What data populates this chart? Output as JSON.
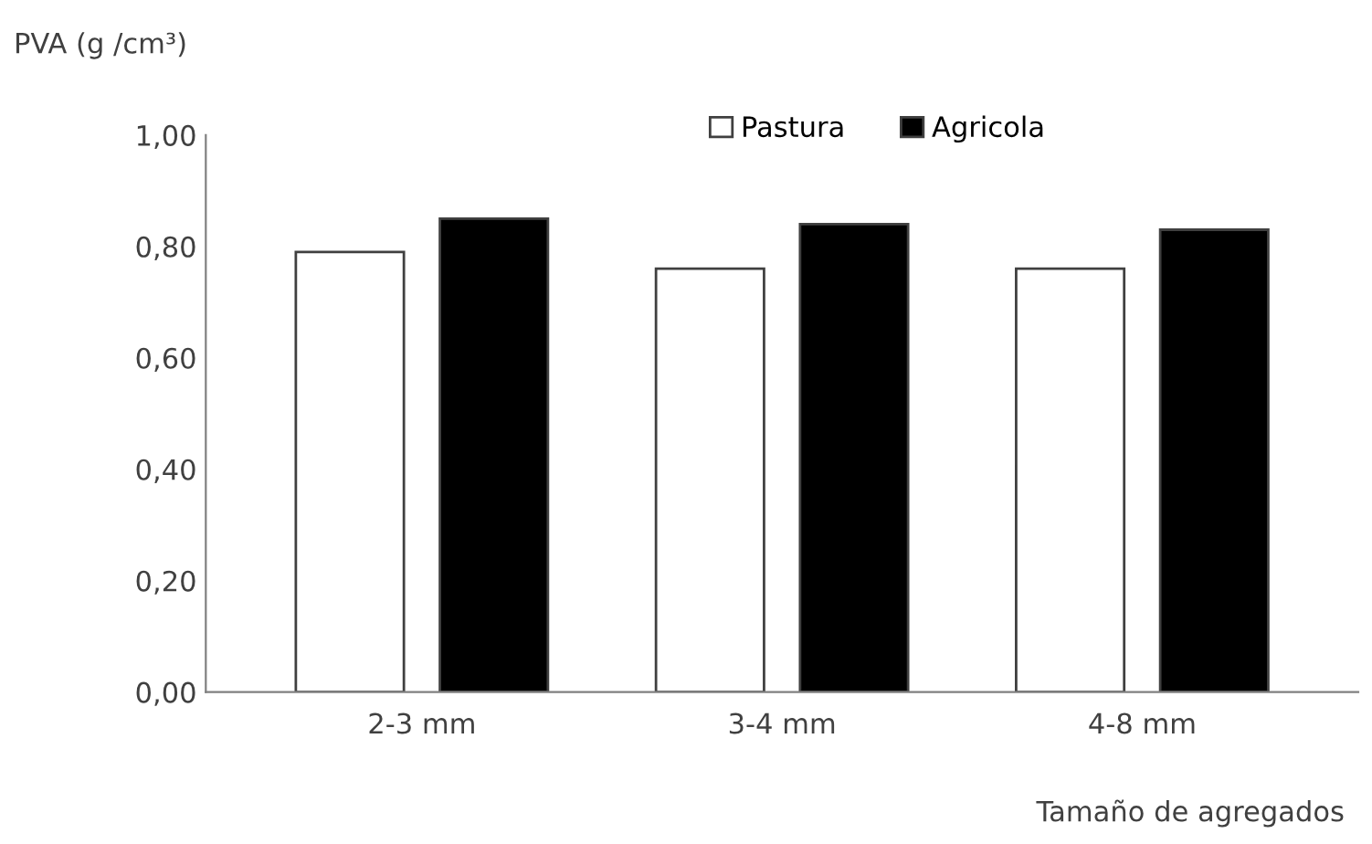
{
  "chart_data": {
    "type": "bar",
    "ylabel": "PVA (g /cm³)",
    "xlabel": "Tamaño de agregados",
    "categories": [
      "2-3 mm",
      "3-4 mm",
      "4-8 mm"
    ],
    "series": [
      {
        "name": "Pastura",
        "color": "#ffffff",
        "values": [
          0.79,
          0.76,
          0.76
        ]
      },
      {
        "name": "Agricola",
        "color": "#000000",
        "values": [
          0.85,
          0.84,
          0.83
        ]
      }
    ],
    "ylim": [
      0,
      1
    ],
    "yticks": [
      {
        "value": 0,
        "label": "0,00"
      },
      {
        "value": 0.2,
        "label": "0,20"
      },
      {
        "value": 0.4,
        "label": "0,40"
      },
      {
        "value": 0.6,
        "label": "0,60"
      },
      {
        "value": 0.8,
        "label": "0,80"
      },
      {
        "value": 1,
        "label": "1,00"
      }
    ],
    "grid": false,
    "legend": "top right"
  }
}
